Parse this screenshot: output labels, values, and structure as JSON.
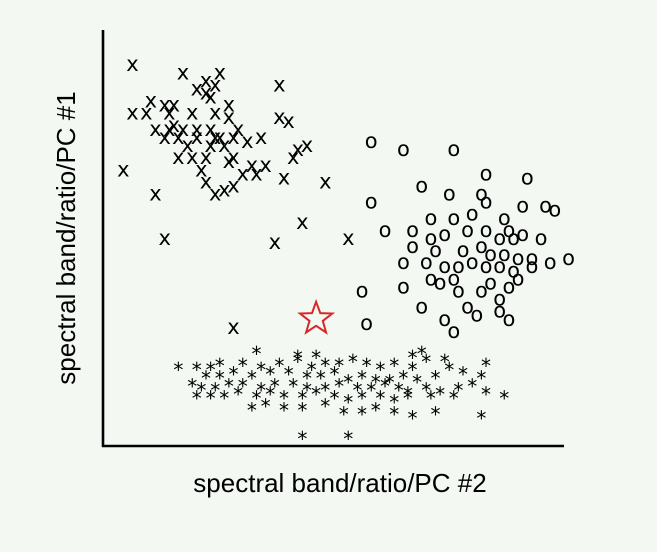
{
  "chart_data": {
    "type": "scatter",
    "title": "",
    "xlabel": "spectral band/ratio/PC #2",
    "ylabel": "spectral band/ratio/PC #1",
    "xlim": [
      0,
      100
    ],
    "ylim": [
      0,
      100
    ],
    "grid": false,
    "legend": "none",
    "series": [
      {
        "marker": "x",
        "color": "#000000",
        "points": [
          [
            6,
            94
          ],
          [
            17,
            92
          ],
          [
            25,
            92
          ],
          [
            22,
            90
          ],
          [
            24,
            89
          ],
          [
            38,
            89
          ],
          [
            20,
            88
          ],
          [
            22,
            87
          ],
          [
            23,
            86
          ],
          [
            10,
            85
          ],
          [
            13,
            84
          ],
          [
            15,
            84
          ],
          [
            27,
            84
          ],
          [
            6,
            82
          ],
          [
            9,
            82
          ],
          [
            14,
            82
          ],
          [
            19,
            82
          ],
          [
            24,
            82
          ],
          [
            27,
            81
          ],
          [
            38,
            81
          ],
          [
            40,
            80
          ],
          [
            15,
            79
          ],
          [
            11,
            78
          ],
          [
            14,
            78
          ],
          [
            17,
            78
          ],
          [
            20,
            78
          ],
          [
            23,
            78
          ],
          [
            29,
            78
          ],
          [
            13,
            76
          ],
          [
            16,
            76
          ],
          [
            20,
            76
          ],
          [
            24,
            76
          ],
          [
            25,
            76
          ],
          [
            28,
            76
          ],
          [
            34,
            76
          ],
          [
            31,
            75
          ],
          [
            44,
            74
          ],
          [
            18,
            74
          ],
          [
            23,
            74
          ],
          [
            26,
            74
          ],
          [
            42,
            73
          ],
          [
            16,
            71
          ],
          [
            19,
            71
          ],
          [
            22,
            71
          ],
          [
            28,
            71
          ],
          [
            41,
            71
          ],
          [
            27,
            70
          ],
          [
            32,
            69
          ],
          [
            35,
            69
          ],
          [
            4,
            68
          ],
          [
            21,
            68
          ],
          [
            30,
            67
          ],
          [
            33,
            67
          ],
          [
            39,
            66
          ],
          [
            22,
            65
          ],
          [
            48,
            65
          ],
          [
            28,
            64
          ],
          [
            11,
            62
          ],
          [
            26,
            63
          ],
          [
            24,
            62
          ],
          [
            43,
            55
          ],
          [
            13,
            51
          ],
          [
            37,
            50
          ],
          [
            53,
            51
          ],
          [
            28,
            29
          ]
        ]
      },
      {
        "marker": "o",
        "color": "#000000",
        "points": [
          [
            58,
            75
          ],
          [
            65,
            73
          ],
          [
            76,
            73
          ],
          [
            83,
            67
          ],
          [
            92,
            66
          ],
          [
            58,
            60
          ],
          [
            69,
            64
          ],
          [
            75,
            62
          ],
          [
            82,
            62
          ],
          [
            71,
            56
          ],
          [
            76,
            56
          ],
          [
            80,
            57
          ],
          [
            83,
            60
          ],
          [
            87,
            56
          ],
          [
            91,
            59
          ],
          [
            96,
            59
          ],
          [
            98,
            58
          ],
          [
            61,
            53
          ],
          [
            67,
            53
          ],
          [
            71,
            51
          ],
          [
            74,
            52
          ],
          [
            79,
            53
          ],
          [
            83,
            53
          ],
          [
            86,
            51
          ],
          [
            88,
            53
          ],
          [
            89,
            51
          ],
          [
            91,
            52
          ],
          [
            95,
            51
          ],
          [
            67,
            49
          ],
          [
            72,
            48
          ],
          [
            78,
            48
          ],
          [
            82,
            49
          ],
          [
            84,
            47
          ],
          [
            87,
            47
          ],
          [
            90,
            46
          ],
          [
            93,
            46
          ],
          [
            97,
            45
          ],
          [
            101,
            46
          ],
          [
            65,
            45
          ],
          [
            70,
            45
          ],
          [
            74,
            44
          ],
          [
            77,
            44
          ],
          [
            80,
            45
          ],
          [
            83,
            44
          ],
          [
            86,
            44
          ],
          [
            89,
            43
          ],
          [
            93,
            44
          ],
          [
            71,
            41
          ],
          [
            73,
            40
          ],
          [
            76,
            41
          ],
          [
            84,
            40
          ],
          [
            88,
            39
          ],
          [
            90,
            41
          ],
          [
            65,
            39
          ],
          [
            77,
            38
          ],
          [
            82,
            38
          ],
          [
            86,
            36
          ],
          [
            56,
            38
          ],
          [
            69,
            34
          ],
          [
            79,
            34
          ],
          [
            81,
            32
          ],
          [
            86,
            33
          ],
          [
            74,
            31
          ],
          [
            88,
            31
          ],
          [
            57,
            30
          ],
          [
            76,
            28
          ]
        ]
      },
      {
        "marker": "*",
        "color": "#000000",
        "points": [
          [
            33,
            23
          ],
          [
            42,
            22
          ],
          [
            46,
            22
          ],
          [
            67,
            22
          ],
          [
            69,
            23
          ],
          [
            74,
            21
          ],
          [
            16,
            19
          ],
          [
            20,
            19
          ],
          [
            23,
            19
          ],
          [
            25,
            20
          ],
          [
            30,
            20
          ],
          [
            34,
            19
          ],
          [
            38,
            20
          ],
          [
            42,
            21
          ],
          [
            45,
            19
          ],
          [
            48,
            20
          ],
          [
            51,
            20
          ],
          [
            54,
            21
          ],
          [
            57,
            20
          ],
          [
            60,
            19
          ],
          [
            63,
            20
          ],
          [
            67,
            19
          ],
          [
            70,
            21
          ],
          [
            75,
            19
          ],
          [
            83,
            20
          ],
          [
            22,
            17
          ],
          [
            25,
            17
          ],
          [
            28,
            18
          ],
          [
            32,
            17
          ],
          [
            36,
            18
          ],
          [
            40,
            18
          ],
          [
            44,
            17
          ],
          [
            47,
            17
          ],
          [
            50,
            18
          ],
          [
            53,
            16
          ],
          [
            56,
            17
          ],
          [
            59,
            16
          ],
          [
            62,
            16
          ],
          [
            65,
            17
          ],
          [
            68,
            16
          ],
          [
            72,
            17
          ],
          [
            78,
            18
          ],
          [
            82,
            17
          ],
          [
            19,
            15
          ],
          [
            21,
            14
          ],
          [
            24,
            14
          ],
          [
            27,
            15
          ],
          [
            30,
            15
          ],
          [
            34,
            14
          ],
          [
            37,
            15
          ],
          [
            41,
            15
          ],
          [
            44,
            14
          ],
          [
            48,
            14
          ],
          [
            51,
            15
          ],
          [
            55,
            14
          ],
          [
            58,
            14
          ],
          [
            61,
            15
          ],
          [
            64,
            14
          ],
          [
            66,
            13
          ],
          [
            70,
            14
          ],
          [
            73,
            13
          ],
          [
            77,
            14
          ],
          [
            80,
            15
          ],
          [
            20,
            12
          ],
          [
            23,
            12
          ],
          [
            26,
            12
          ],
          [
            29,
            13
          ],
          [
            33,
            12
          ],
          [
            36,
            13
          ],
          [
            39,
            12
          ],
          [
            43,
            12
          ],
          [
            46,
            13
          ],
          [
            50,
            12
          ],
          [
            53,
            11
          ],
          [
            56,
            12
          ],
          [
            60,
            12
          ],
          [
            63,
            11
          ],
          [
            66,
            12
          ],
          [
            71,
            12
          ],
          [
            76,
            12
          ],
          [
            83,
            13
          ],
          [
            87,
            12
          ],
          [
            32,
            9
          ],
          [
            35,
            10
          ],
          [
            39,
            9
          ],
          [
            43,
            9
          ],
          [
            48,
            10
          ],
          [
            52,
            8
          ],
          [
            56,
            8
          ],
          [
            59,
            9
          ],
          [
            63,
            8
          ],
          [
            67,
            7
          ],
          [
            72,
            8
          ],
          [
            82,
            7
          ],
          [
            43,
            2
          ],
          [
            53,
            2
          ]
        ]
      },
      {
        "marker": "star",
        "color": "#d62828",
        "points": [
          [
            46,
            31
          ]
        ]
      }
    ]
  }
}
